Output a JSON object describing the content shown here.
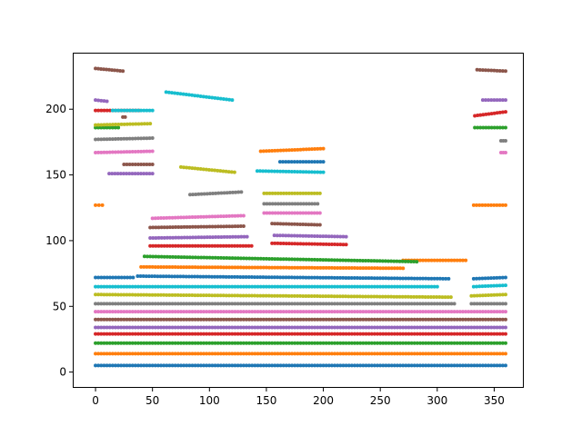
{
  "chart_data": {
    "type": "scatter",
    "title": "",
    "xlabel": "",
    "ylabel": "",
    "xlim": [
      -20,
      376
    ],
    "ylim": [
      -12,
      243
    ],
    "xticks": [
      0,
      50,
      100,
      150,
      200,
      250,
      300,
      350
    ],
    "yticks": [
      0,
      50,
      100,
      150,
      200
    ],
    "grid": false,
    "legend": "none",
    "series": [
      {
        "color": "#1f77b4",
        "segments": [
          {
            "x": [
              0,
              360
            ],
            "y": [
              5,
              5
            ]
          }
        ]
      },
      {
        "color": "#ff7f0e",
        "segments": [
          {
            "x": [
              0,
              360
            ],
            "y": [
              14,
              14
            ]
          }
        ]
      },
      {
        "color": "#2ca02c",
        "segments": [
          {
            "x": [
              0,
              360
            ],
            "y": [
              22,
              22
            ]
          }
        ]
      },
      {
        "color": "#d62728",
        "segments": [
          {
            "x": [
              0,
              360
            ],
            "y": [
              29,
              29
            ]
          }
        ]
      },
      {
        "color": "#9467bd",
        "segments": [
          {
            "x": [
              0,
              360
            ],
            "y": [
              34,
              34
            ]
          }
        ]
      },
      {
        "color": "#8c564b",
        "segments": [
          {
            "x": [
              0,
              360
            ],
            "y": [
              40,
              40
            ]
          }
        ]
      },
      {
        "color": "#e377c2",
        "segments": [
          {
            "x": [
              0,
              360
            ],
            "y": [
              46,
              46
            ]
          }
        ]
      },
      {
        "color": "#7f7f7f",
        "segments": [
          {
            "x": [
              0,
              315
            ],
            "y": [
              52,
              52
            ]
          },
          {
            "x": [
              330,
              360
            ],
            "y": [
              52,
              52
            ]
          }
        ]
      },
      {
        "color": "#bcbd22",
        "segments": [
          {
            "x": [
              0,
              312
            ],
            "y": [
              59,
              57
            ]
          },
          {
            "x": [
              330,
              360
            ],
            "y": [
              58,
              59
            ]
          }
        ]
      },
      {
        "color": "#17becf",
        "segments": [
          {
            "x": [
              0,
              300
            ],
            "y": [
              65,
              65
            ]
          },
          {
            "x": [
              332,
              360
            ],
            "y": [
              65,
              66
            ]
          }
        ]
      },
      {
        "color": "#1f77b4",
        "segments": [
          {
            "x": [
              0,
              33
            ],
            "y": [
              72,
              72
            ]
          },
          {
            "x": [
              37,
              310
            ],
            "y": [
              73,
              71
            ]
          },
          {
            "x": [
              332,
              360
            ],
            "y": [
              71,
              72
            ]
          }
        ]
      },
      {
        "color": "#ff7f0e",
        "segments": [
          {
            "x": [
              40,
              270
            ],
            "y": [
              80,
              79
            ]
          },
          {
            "x": [
              270,
              325
            ],
            "y": [
              85,
              85
            ]
          },
          {
            "x": [
              0,
              6
            ],
            "y": [
              127,
              127
            ]
          },
          {
            "x": [
              332,
              360
            ],
            "y": [
              127,
              127
            ]
          }
        ]
      },
      {
        "color": "#2ca02c",
        "segments": [
          {
            "x": [
              43,
              282
            ],
            "y": [
              88,
              84
            ]
          },
          {
            "x": [
              0,
              20
            ],
            "y": [
              186,
              186
            ]
          },
          {
            "x": [
              333,
              360
            ],
            "y": [
              186,
              186
            ]
          }
        ]
      },
      {
        "color": "#d62728",
        "segments": [
          {
            "x": [
              48,
              137
            ],
            "y": [
              96,
              96
            ]
          },
          {
            "x": [
              155,
              220
            ],
            "y": [
              98,
              97
            ]
          },
          {
            "x": [
              0,
              38
            ],
            "y": [
              199,
              199
            ]
          },
          {
            "x": [
              333,
              360
            ],
            "y": [
              195,
              198
            ]
          }
        ]
      },
      {
        "color": "#9467bd",
        "segments": [
          {
            "x": [
              48,
              133
            ],
            "y": [
              102,
              103
            ]
          },
          {
            "x": [
              157,
              220
            ],
            "y": [
              104,
              103
            ]
          },
          {
            "x": [
              0,
              10
            ],
            "y": [
              207,
              206
            ]
          },
          {
            "x": [
              12,
              50
            ],
            "y": [
              151,
              151
            ]
          },
          {
            "x": [
              340,
              360
            ],
            "y": [
              207,
              207
            ]
          }
        ]
      },
      {
        "color": "#8c564b",
        "segments": [
          {
            "x": [
              48,
              130
            ],
            "y": [
              110,
              111
            ]
          },
          {
            "x": [
              155,
              197
            ],
            "y": [
              113,
              112
            ]
          },
          {
            "x": [
              0,
              24
            ],
            "y": [
              231,
              229
            ]
          },
          {
            "x": [
              25,
              50
            ],
            "y": [
              158,
              158
            ]
          },
          {
            "x": [
              335,
              360
            ],
            "y": [
              230,
              229
            ]
          },
          {
            "x": [
              24,
              26
            ],
            "y": [
              194,
              194
            ]
          }
        ]
      },
      {
        "color": "#e377c2",
        "segments": [
          {
            "x": [
              50,
              130
            ],
            "y": [
              117,
              119
            ]
          },
          {
            "x": [
              148,
              197
            ],
            "y": [
              121,
              121
            ]
          },
          {
            "x": [
              0,
              50
            ],
            "y": [
              167,
              168
            ]
          },
          {
            "x": [
              356,
              360
            ],
            "y": [
              167,
              167
            ]
          }
        ]
      },
      {
        "color": "#7f7f7f",
        "segments": [
          {
            "x": [
              83,
              128
            ],
            "y": [
              135,
              137
            ]
          },
          {
            "x": [
              148,
              195
            ],
            "y": [
              128,
              128
            ]
          },
          {
            "x": [
              0,
              50
            ],
            "y": [
              177,
              178
            ]
          },
          {
            "x": [
              356,
              360
            ],
            "y": [
              176,
              176
            ]
          }
        ]
      },
      {
        "color": "#bcbd22",
        "segments": [
          {
            "x": [
              75,
              122
            ],
            "y": [
              156,
              152
            ]
          },
          {
            "x": [
              148,
              197
            ],
            "y": [
              136,
              136
            ]
          },
          {
            "x": [
              0,
              48
            ],
            "y": [
              188,
              189
            ]
          }
        ]
      },
      {
        "color": "#17becf",
        "segments": [
          {
            "x": [
              62,
              120
            ],
            "y": [
              213,
              207
            ]
          },
          {
            "x": [
              142,
              200
            ],
            "y": [
              153,
              152
            ]
          },
          {
            "x": [
              15,
              50
            ],
            "y": [
              199,
              199
            ]
          }
        ]
      },
      {
        "color": "#1f77b4",
        "segments": [
          {
            "x": [
              162,
              200
            ],
            "y": [
              160,
              160
            ]
          }
        ]
      },
      {
        "color": "#ff7f0e",
        "segments": [
          {
            "x": [
              145,
              200
            ],
            "y": [
              168,
              170
            ]
          }
        ]
      }
    ]
  }
}
